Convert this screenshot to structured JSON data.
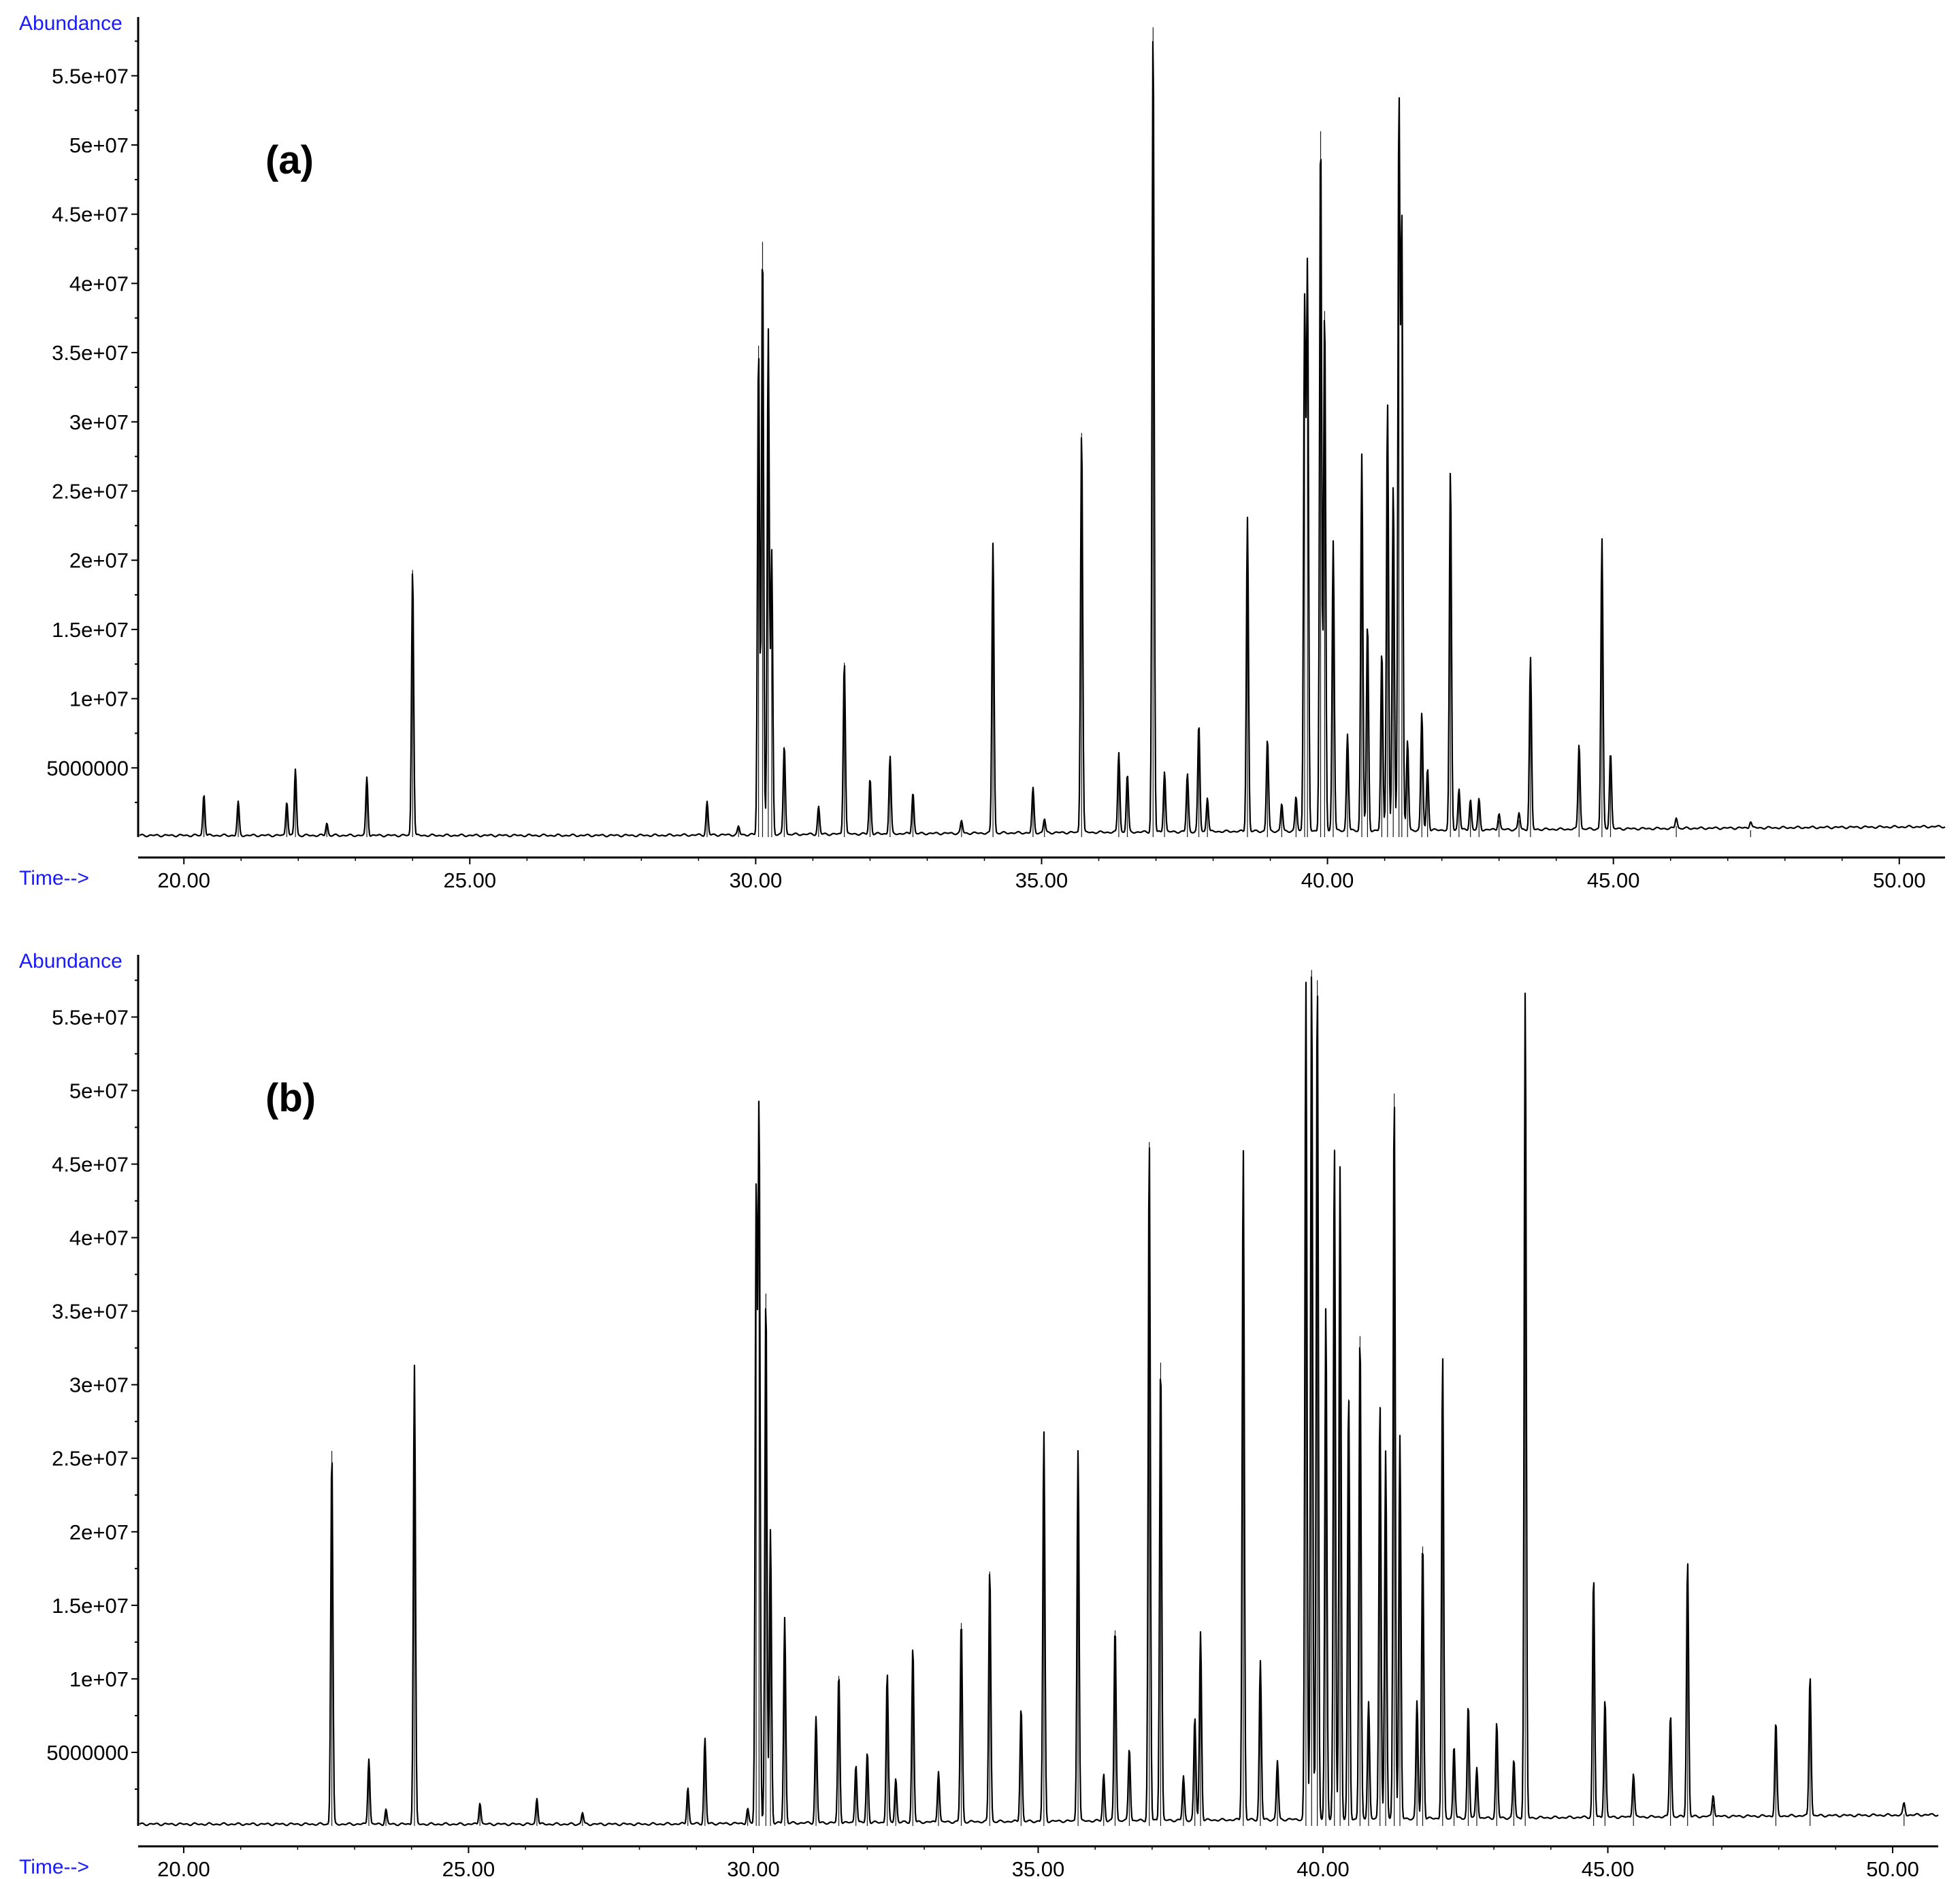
{
  "chart_data": [
    {
      "type": "line",
      "panel_label": "(a)",
      "ylabel": "Abundance",
      "xlabel": "Time-->",
      "xlim": [
        19.2,
        50.8
      ],
      "ylim": [
        0,
        59000000
      ],
      "x_ticks": [
        20.0,
        25.0,
        30.0,
        35.0,
        40.0,
        45.0,
        50.0
      ],
      "x_tick_labels": [
        "20.00",
        "25.00",
        "30.00",
        "35.00",
        "40.00",
        "45.00",
        "50.00"
      ],
      "y_ticks": [
        5000000,
        10000000,
        15000000,
        20000000,
        25000000,
        30000000,
        35000000,
        40000000,
        45000000,
        50000000,
        55000000
      ],
      "y_tick_labels": [
        "5000000",
        "1e+07",
        "1.5e+07",
        "2e+07",
        "2.5e+07",
        "3e+07",
        "3.5e+07",
        "4e+07",
        "4.5e+07",
        "5e+07",
        "5.5e+07"
      ],
      "grid": false,
      "colors": {
        "trace": "#000000",
        "axis_label": "#1a1aff"
      },
      "series": [
        {
          "peaks": [
            [
              20.35,
              3000000
            ],
            [
              20.95,
              2400000
            ],
            [
              21.8,
              2500000
            ],
            [
              21.95,
              4800000
            ],
            [
              22.5,
              900000
            ],
            [
              23.2,
              4200000
            ],
            [
              24.0,
              19300000
            ],
            [
              29.15,
              2400000
            ],
            [
              29.7,
              600000
            ],
            [
              30.05,
              35500000
            ],
            [
              30.12,
              43000000
            ],
            [
              30.22,
              36500000
            ],
            [
              30.28,
              20500000
            ],
            [
              30.5,
              6500000
            ],
            [
              31.1,
              2000000
            ],
            [
              31.55,
              12600000
            ],
            [
              32.0,
              4000000
            ],
            [
              32.35,
              5600000
            ],
            [
              32.75,
              3000000
            ],
            [
              33.6,
              900000
            ],
            [
              34.15,
              21000000
            ],
            [
              34.85,
              3200000
            ],
            [
              35.05,
              1000000
            ],
            [
              35.7,
              29200000
            ],
            [
              36.35,
              5800000
            ],
            [
              36.5,
              4200000
            ],
            [
              36.95,
              58500000
            ],
            [
              37.15,
              4400000
            ],
            [
              37.55,
              4200000
            ],
            [
              37.75,
              7800000
            ],
            [
              37.9,
              2500000
            ],
            [
              38.6,
              22700000
            ],
            [
              38.95,
              6700000
            ],
            [
              39.2,
              2000000
            ],
            [
              39.45,
              2500000
            ],
            [
              39.6,
              38000000
            ],
            [
              39.65,
              40500000
            ],
            [
              39.88,
              51000000
            ],
            [
              39.95,
              38000000
            ],
            [
              40.1,
              21000000
            ],
            [
              40.35,
              7000000
            ],
            [
              40.6,
              27200000
            ],
            [
              40.7,
              15000000
            ],
            [
              40.95,
              13000000
            ],
            [
              41.05,
              31000000
            ],
            [
              41.15,
              25000000
            ],
            [
              41.25,
              52800000
            ],
            [
              41.3,
              44000000
            ],
            [
              41.4,
              6500000
            ],
            [
              41.65,
              8500000
            ],
            [
              41.75,
              4500000
            ],
            [
              42.15,
              26000000
            ],
            [
              42.3,
              3000000
            ],
            [
              42.5,
              2200000
            ],
            [
              42.65,
              2200000
            ],
            [
              43.0,
              1200000
            ],
            [
              43.35,
              1200000
            ],
            [
              43.55,
              12400000
            ],
            [
              44.4,
              6200000
            ],
            [
              44.8,
              21000000
            ],
            [
              44.95,
              5600000
            ],
            [
              46.1,
              800000
            ],
            [
              47.4,
              500000
            ]
          ]
        }
      ]
    },
    {
      "type": "line",
      "panel_label": "(b)",
      "ylabel": "Abundance",
      "xlabel": "Time-->",
      "xlim": [
        19.2,
        50.8
      ],
      "ylim": [
        0,
        59000000
      ],
      "x_ticks": [
        20.0,
        25.0,
        30.0,
        35.0,
        40.0,
        45.0,
        50.0
      ],
      "x_tick_labels": [
        "20.00",
        "25.00",
        "30.00",
        "35.00",
        "40.00",
        "45.00",
        "50.00"
      ],
      "y_ticks": [
        5000000,
        10000000,
        15000000,
        20000000,
        25000000,
        30000000,
        35000000,
        40000000,
        45000000,
        50000000,
        55000000
      ],
      "y_tick_labels": [
        "5000000",
        "1e+07",
        "1.5e+07",
        "2e+07",
        "2.5e+07",
        "3e+07",
        "3.5e+07",
        "4e+07",
        "4.5e+07",
        "5e+07",
        "5.5e+07"
      ],
      "grid": false,
      "colors": {
        "trace": "#000000",
        "axis_label": "#1a1aff"
      },
      "series": [
        {
          "peaks": [
            [
              22.6,
              25500000
            ],
            [
              23.25,
              4500000
            ],
            [
              23.55,
              1000000
            ],
            [
              24.05,
              31200000
            ],
            [
              25.2,
              1500000
            ],
            [
              26.2,
              1800000
            ],
            [
              27.0,
              800000
            ],
            [
              28.85,
              2500000
            ],
            [
              29.15,
              5800000
            ],
            [
              29.9,
              1000000
            ],
            [
              30.05,
              43000000
            ],
            [
              30.1,
              48800000
            ],
            [
              30.22,
              36200000
            ],
            [
              30.3,
              20000000
            ],
            [
              30.55,
              14000000
            ],
            [
              31.1,
              7200000
            ],
            [
              31.5,
              10200000
            ],
            [
              31.8,
              4000000
            ],
            [
              32.0,
              4800000
            ],
            [
              32.35,
              10200000
            ],
            [
              32.5,
              3000000
            ],
            [
              32.8,
              12000000
            ],
            [
              33.25,
              3500000
            ],
            [
              33.65,
              13800000
            ],
            [
              34.15,
              17300000
            ],
            [
              34.7,
              7800000
            ],
            [
              35.1,
              26500000
            ],
            [
              35.7,
              25300000
            ],
            [
              36.15,
              3200000
            ],
            [
              36.35,
              13300000
            ],
            [
              36.6,
              5000000
            ],
            [
              36.95,
              46500000
            ],
            [
              37.15,
              31500000
            ],
            [
              37.55,
              3000000
            ],
            [
              37.75,
              7000000
            ],
            [
              37.85,
              12800000
            ],
            [
              38.6,
              45800000
            ],
            [
              38.9,
              10800000
            ],
            [
              39.2,
              4000000
            ],
            [
              39.7,
              57000000
            ],
            [
              39.8,
              58200000
            ],
            [
              39.9,
              57500000
            ],
            [
              40.05,
              35000000
            ],
            [
              40.2,
              46000000
            ],
            [
              40.3,
              44500000
            ],
            [
              40.45,
              29000000
            ],
            [
              40.65,
              33300000
            ],
            [
              40.8,
              8000000
            ],
            [
              41.0,
              28500000
            ],
            [
              41.1,
              25000000
            ],
            [
              41.25,
              49800000
            ],
            [
              41.35,
              26000000
            ],
            [
              41.65,
              8000000
            ],
            [
              41.75,
              19000000
            ],
            [
              42.1,
              31500000
            ],
            [
              42.3,
              5000000
            ],
            [
              42.55,
              7800000
            ],
            [
              42.7,
              3500000
            ],
            [
              43.05,
              6500000
            ],
            [
              43.35,
              4000000
            ],
            [
              43.55,
              56300000
            ],
            [
              44.75,
              16500000
            ],
            [
              44.95,
              8100000
            ],
            [
              45.45,
              3000000
            ],
            [
              46.1,
              7000000
            ],
            [
              46.4,
              17500000
            ],
            [
              46.85,
              1500000
            ],
            [
              47.95,
              6400000
            ],
            [
              48.55,
              9600000
            ],
            [
              50.2,
              800000
            ]
          ]
        }
      ]
    }
  ]
}
